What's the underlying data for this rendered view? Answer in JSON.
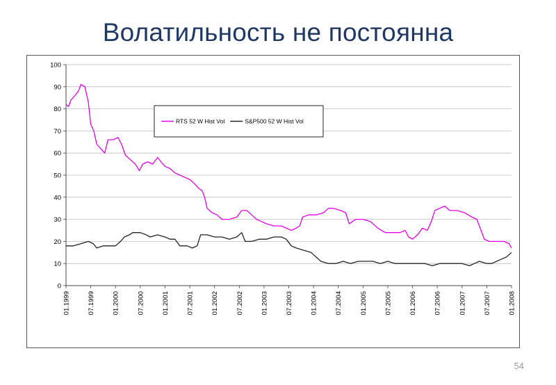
{
  "slide": {
    "title": "Волатильность не постоянна",
    "page_number": "54"
  },
  "chart_data": {
    "type": "line",
    "title": "",
    "xlabel": "",
    "ylabel": "",
    "ylim": [
      0,
      100
    ],
    "yticks": [
      0,
      10,
      20,
      30,
      40,
      50,
      60,
      70,
      80,
      90,
      100
    ],
    "xlim": [
      1999.0,
      2008.0
    ],
    "xtick_labels": [
      "01.1999",
      "07.1999",
      "01.2000",
      "07.2000",
      "01.2001",
      "07.2001",
      "01.2002",
      "07.2002",
      "01.2003",
      "07.2003",
      "01.2004",
      "07.2004",
      "01.2005",
      "07.2005",
      "01.2006",
      "07.2006",
      "01.2007",
      "07.2007",
      "01.2008"
    ],
    "grid": "horizontal",
    "legend": "top-center",
    "series": [
      {
        "name": "RTS 52 W Hist Vol",
        "color": "#e600e6",
        "points": [
          [
            1999.0,
            82
          ],
          [
            1999.05,
            81
          ],
          [
            1999.1,
            84
          ],
          [
            1999.18,
            86
          ],
          [
            1999.25,
            88
          ],
          [
            1999.3,
            91
          ],
          [
            1999.38,
            90
          ],
          [
            1999.45,
            83
          ],
          [
            1999.5,
            73
          ],
          [
            1999.56,
            70
          ],
          [
            1999.62,
            64
          ],
          [
            1999.7,
            62
          ],
          [
            1999.78,
            60
          ],
          [
            1999.85,
            66
          ],
          [
            1999.95,
            66
          ],
          [
            2000.05,
            67
          ],
          [
            2000.12,
            64
          ],
          [
            2000.2,
            59
          ],
          [
            2000.3,
            57
          ],
          [
            2000.4,
            55
          ],
          [
            2000.48,
            52
          ],
          [
            2000.55,
            55
          ],
          [
            2000.65,
            56
          ],
          [
            2000.75,
            55
          ],
          [
            2000.85,
            58
          ],
          [
            2000.92,
            56
          ],
          [
            2001.0,
            54
          ],
          [
            2001.1,
            53
          ],
          [
            2001.2,
            51
          ],
          [
            2001.3,
            50
          ],
          [
            2001.4,
            49
          ],
          [
            2001.5,
            48
          ],
          [
            2001.6,
            46
          ],
          [
            2001.68,
            44
          ],
          [
            2001.75,
            43
          ],
          [
            2001.8,
            40
          ],
          [
            2001.85,
            35
          ],
          [
            2001.95,
            33
          ],
          [
            2002.05,
            32
          ],
          [
            2002.15,
            30
          ],
          [
            2002.3,
            30
          ],
          [
            2002.45,
            31
          ],
          [
            2002.55,
            34
          ],
          [
            2002.65,
            34
          ],
          [
            2002.75,
            32
          ],
          [
            2002.85,
            30
          ],
          [
            2002.95,
            29
          ],
          [
            2003.05,
            28
          ],
          [
            2003.2,
            27
          ],
          [
            2003.35,
            27
          ],
          [
            2003.45,
            26
          ],
          [
            2003.55,
            25
          ],
          [
            2003.65,
            26
          ],
          [
            2003.72,
            27
          ],
          [
            2003.78,
            31
          ],
          [
            2003.9,
            32
          ],
          [
            2004.05,
            32
          ],
          [
            2004.2,
            33
          ],
          [
            2004.3,
            35
          ],
          [
            2004.4,
            35
          ],
          [
            2004.55,
            34
          ],
          [
            2004.65,
            33
          ],
          [
            2004.72,
            28
          ],
          [
            2004.85,
            30
          ],
          [
            2005.0,
            30
          ],
          [
            2005.15,
            29
          ],
          [
            2005.3,
            26
          ],
          [
            2005.45,
            24
          ],
          [
            2005.6,
            24
          ],
          [
            2005.75,
            24
          ],
          [
            2005.85,
            25
          ],
          [
            2005.92,
            22
          ],
          [
            2006.0,
            21
          ],
          [
            2006.1,
            23
          ],
          [
            2006.2,
            26
          ],
          [
            2006.3,
            25
          ],
          [
            2006.38,
            29
          ],
          [
            2006.45,
            34
          ],
          [
            2006.55,
            35
          ],
          [
            2006.65,
            36
          ],
          [
            2006.75,
            34
          ],
          [
            2006.9,
            34
          ],
          [
            2007.05,
            33
          ],
          [
            2007.2,
            31
          ],
          [
            2007.3,
            30
          ],
          [
            2007.4,
            24
          ],
          [
            2007.45,
            21
          ],
          [
            2007.55,
            20
          ],
          [
            2007.7,
            20
          ],
          [
            2007.85,
            20
          ],
          [
            2007.95,
            19
          ],
          [
            2008.0,
            17
          ]
        ]
      },
      {
        "name": "S&P500 52 W Hist Vol",
        "color": "#222222",
        "points": [
          [
            1999.0,
            18
          ],
          [
            1999.15,
            18
          ],
          [
            1999.3,
            19
          ],
          [
            1999.45,
            20
          ],
          [
            1999.55,
            19
          ],
          [
            1999.62,
            17
          ],
          [
            1999.75,
            18
          ],
          [
            1999.9,
            18
          ],
          [
            2000.0,
            18
          ],
          [
            2000.1,
            20
          ],
          [
            2000.18,
            22
          ],
          [
            2000.28,
            23
          ],
          [
            2000.35,
            24
          ],
          [
            2000.5,
            24
          ],
          [
            2000.62,
            23
          ],
          [
            2000.7,
            22
          ],
          [
            2000.85,
            23
          ],
          [
            2001.0,
            22
          ],
          [
            2001.1,
            21
          ],
          [
            2001.2,
            21
          ],
          [
            2001.3,
            18
          ],
          [
            2001.45,
            18
          ],
          [
            2001.55,
            17
          ],
          [
            2001.65,
            18
          ],
          [
            2001.72,
            23
          ],
          [
            2001.85,
            23
          ],
          [
            2002.0,
            22
          ],
          [
            2002.15,
            22
          ],
          [
            2002.3,
            21
          ],
          [
            2002.45,
            22
          ],
          [
            2002.55,
            24
          ],
          [
            2002.62,
            20
          ],
          [
            2002.75,
            20
          ],
          [
            2002.9,
            21
          ],
          [
            2003.05,
            21
          ],
          [
            2003.2,
            22
          ],
          [
            2003.35,
            22
          ],
          [
            2003.45,
            21
          ],
          [
            2003.55,
            18
          ],
          [
            2003.65,
            17
          ],
          [
            2003.8,
            16
          ],
          [
            2003.95,
            15
          ],
          [
            2004.05,
            13
          ],
          [
            2004.15,
            11
          ],
          [
            2004.3,
            10
          ],
          [
            2004.45,
            10
          ],
          [
            2004.6,
            11
          ],
          [
            2004.75,
            10
          ],
          [
            2004.9,
            11
          ],
          [
            2005.05,
            11
          ],
          [
            2005.2,
            11
          ],
          [
            2005.35,
            10
          ],
          [
            2005.5,
            11
          ],
          [
            2005.65,
            10
          ],
          [
            2005.8,
            10
          ],
          [
            2005.95,
            10
          ],
          [
            2006.1,
            10
          ],
          [
            2006.25,
            10
          ],
          [
            2006.4,
            9
          ],
          [
            2006.55,
            10
          ],
          [
            2006.7,
            10
          ],
          [
            2006.85,
            10
          ],
          [
            2007.0,
            10
          ],
          [
            2007.15,
            9
          ],
          [
            2007.25,
            10
          ],
          [
            2007.35,
            11
          ],
          [
            2007.5,
            10
          ],
          [
            2007.6,
            10
          ],
          [
            2007.7,
            11
          ],
          [
            2007.8,
            12
          ],
          [
            2007.9,
            13
          ],
          [
            2008.0,
            15
          ]
        ]
      }
    ]
  }
}
